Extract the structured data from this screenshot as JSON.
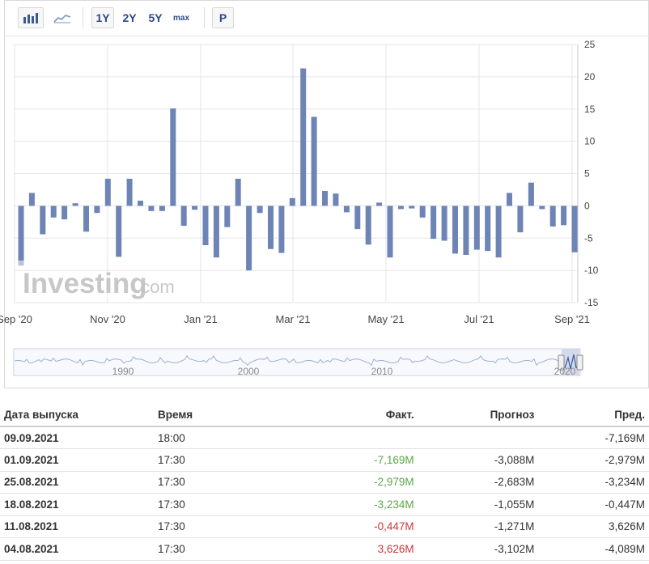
{
  "toolbar": {
    "bar_chart_icon": "bar-chart-icon",
    "line_chart_icon": "line-chart-icon",
    "ranges": [
      "1Y",
      "2Y",
      "5Y",
      "max"
    ],
    "p_button": "P"
  },
  "watermark": {
    "logo_text": "Investing",
    "logo_suffix": ".com"
  },
  "colors": {
    "bar": "#6e84b5",
    "grid": "#e6e6e6",
    "positive": "#5aa843",
    "negative": "#d0343a",
    "prev_bar": "#b9c3dc"
  },
  "chart_data": {
    "type": "bar",
    "title": "",
    "xlabel": "",
    "ylabel": "",
    "ylim": [
      -15,
      25
    ],
    "y_ticks": [
      25,
      20,
      15,
      10,
      5,
      0,
      -5,
      -10,
      -15
    ],
    "x_tick_labels": [
      "Sep '20",
      "Nov '20",
      "Jan '21",
      "Mar '21",
      "May '21",
      "Jul '21",
      "Sep '21"
    ],
    "values": [
      -8.5,
      2.0,
      -4.4,
      -1.8,
      -2.1,
      0.4,
      -4.0,
      -1.1,
      4.2,
      -7.9,
      4.2,
      0.8,
      -0.8,
      -0.8,
      15.1,
      -3.1,
      -0.6,
      -6.1,
      -8.0,
      -3.3,
      4.2,
      -10.0,
      -1.1,
      -6.7,
      -7.3,
      1.2,
      21.3,
      13.8,
      2.3,
      1.9,
      -1.0,
      -3.6,
      -6.0,
      0.5,
      -8.0,
      -0.5,
      -0.4,
      -1.8,
      -5.1,
      -5.4,
      -7.4,
      -7.6,
      -6.8,
      -7.0,
      -8.0,
      2.0,
      -4.1,
      3.6,
      -0.5,
      -3.2,
      -3.0,
      -7.2
    ],
    "grid": true,
    "legend": "none",
    "navigator_year_labels": [
      "1990",
      "2000",
      "2010",
      "2020"
    ]
  },
  "table": {
    "headers": [
      "Дата выпуска",
      "Время",
      "Факт.",
      "Прогноз",
      "Пред."
    ],
    "rows": [
      {
        "date": "09.09.2021",
        "time": "18:00",
        "actual": "",
        "actual_trend": "",
        "forecast": "",
        "previous": "-7,169M"
      },
      {
        "date": "01.09.2021",
        "time": "17:30",
        "actual": "-7,169M",
        "actual_trend": "positive",
        "forecast": "-3,088M",
        "previous": "-2,979M"
      },
      {
        "date": "25.08.2021",
        "time": "17:30",
        "actual": "-2,979M",
        "actual_trend": "positive",
        "forecast": "-2,683M",
        "previous": "-3,234M"
      },
      {
        "date": "18.08.2021",
        "time": "17:30",
        "actual": "-3,234M",
        "actual_trend": "positive",
        "forecast": "-1,055M",
        "previous": "-0,447M"
      },
      {
        "date": "11.08.2021",
        "time": "17:30",
        "actual": "-0,447M",
        "actual_trend": "negative",
        "forecast": "-1,271M",
        "previous": "3,626M"
      },
      {
        "date": "04.08.2021",
        "time": "17:30",
        "actual": "3,626M",
        "actual_trend": "negative",
        "forecast": "-3,102M",
        "previous": "-4,089M"
      }
    ]
  }
}
